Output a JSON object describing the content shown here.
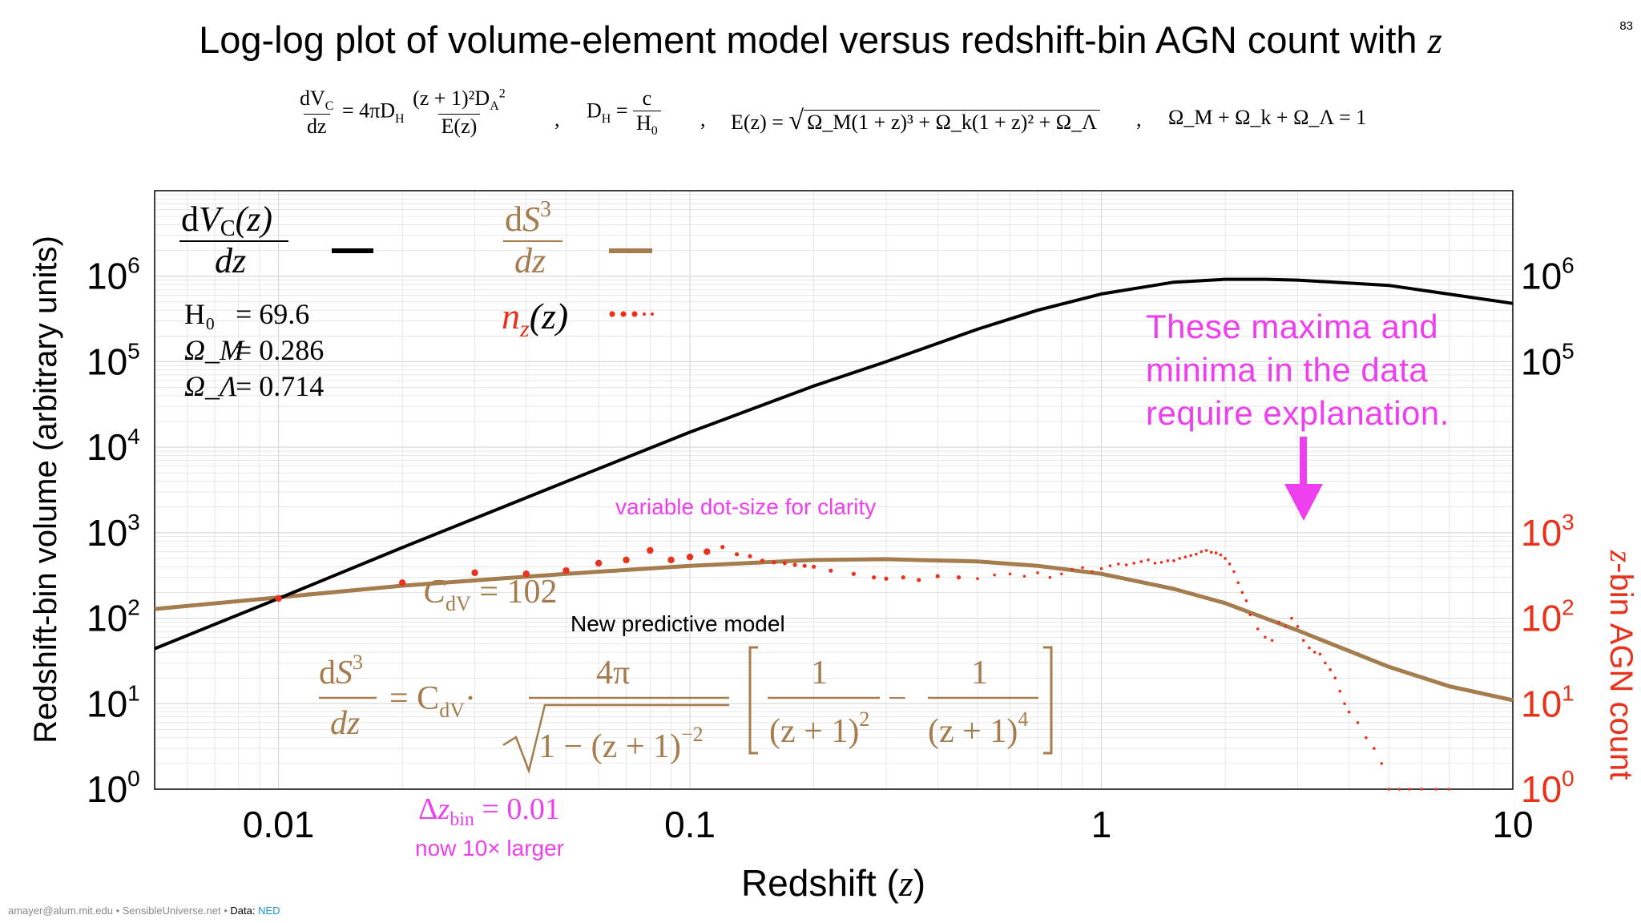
{
  "slide": {
    "title_main": "Log-log plot of volume-element model versus redshift-bin AGN count with ",
    "title_var": "z",
    "page_number": "83"
  },
  "equations": {
    "dvc_lhs_num": "dV",
    "dvc_lhs_num_sub": "C",
    "dvc_lhs_den": "dz",
    "dvc_rhs_prefix": "= 4πD",
    "dvc_rhs_prefix_sub": "H",
    "dvc_rhs_num": "(z + 1)²D",
    "dvc_rhs_num_sub": "A",
    "dvc_rhs_num_sup": "2",
    "dvc_rhs_den": "E(z)",
    "dh_lhs": "D",
    "dh_lhs_sub": "H",
    "dh_eq": " = ",
    "dh_num": "c",
    "dh_den": "H",
    "dh_den_sub": "0",
    "ez_lhs": "E(z) = ",
    "ez_radicand": "Ω_M(1 + z)³ + Ω_k(1 + z)² + Ω_Λ",
    "omega_sum": "Ω_M + Ω_k + Ω_Λ = 1",
    "separator": ","
  },
  "legend": {
    "dvc_num": "dV",
    "dvc_num_sub": "C",
    "dvc_num_arg": "(z)",
    "dvc_den": "dz",
    "ds3_num": "dS",
    "ds3_num_sup": "3",
    "ds3_den": "dz",
    "nz_label": "n",
    "nz_sub": "z",
    "nz_arg": "(z)"
  },
  "params": [
    {
      "name": "H₀",
      "value": "= 69.6"
    },
    {
      "name": "Ω_M",
      "value": "= 0.286"
    },
    {
      "name": "Ω_Λ",
      "value": "= 0.714"
    }
  ],
  "annotations": {
    "maxima_line1": "These maxima and",
    "maxima_line2": "minima in the data",
    "maxima_line3": "require explanation.",
    "dot_size": "variable dot-size for clarity",
    "cdv_value": "C",
    "cdv_sub": "dV",
    "cdv_eq": " = 102",
    "new_model": "New predictive model",
    "model_lhs_num": "dS",
    "model_lhs_num_sup": "3",
    "model_lhs_den": "dz",
    "model_rhs_coef": "= C",
    "model_rhs_coef_sub": "dV",
    "model_rhs_dot": "·",
    "model_frac_num": "4π",
    "model_frac_den": "1 − (z + 1)",
    "model_frac_den_sup": "−2",
    "model_b1_num": "1",
    "model_b1_den": "(z + 1)",
    "model_b1_den_sup": "2",
    "model_minus": "−",
    "model_b2_num": "1",
    "model_b2_den": "(z + 1)",
    "model_b2_den_sup": "4",
    "dz_bin": "Δz",
    "dz_bin_sub": "bin",
    "dz_bin_eq": " = 0.01",
    "dz_bin_note": "now 10× larger"
  },
  "footer": {
    "left": "amayer@alum.mit.edu • SensibleUniverse.net • ",
    "data_label": "Data: ",
    "data_source": "NED"
  },
  "colors": {
    "black_curve": "#000000",
    "brown_curve": "#a57c4d",
    "red_dots": "#e8321c",
    "magenta": "#ee3fee",
    "grid": "#d9d9d9"
  },
  "chart_data": {
    "type": "line",
    "xscale": "log",
    "yscale": "log",
    "xlim": [
      0.005,
      10
    ],
    "ylim_left": [
      1,
      10000000
    ],
    "ylim_right": [
      1,
      10000000
    ],
    "xlabel": "Redshift (z)",
    "xlabel_main": "Redshift (",
    "xlabel_var": "z",
    "xlabel_end": ")",
    "ylabel_left": "Redshift-bin volume (arbitrary units)",
    "ylabel_right_var": "z",
    "ylabel_right_rest": "-bin AGN count",
    "grid": true,
    "x_ticks": [
      {
        "value": 0.01,
        "label": "0.01"
      },
      {
        "value": 0.1,
        "label": "0.1"
      },
      {
        "value": 1,
        "label": "1"
      },
      {
        "value": 10,
        "label": "10"
      }
    ],
    "y_ticks_left": [
      {
        "value": 1,
        "base": "10",
        "exp": "0"
      },
      {
        "value": 10,
        "base": "10",
        "exp": "1"
      },
      {
        "value": 100,
        "base": "10",
        "exp": "2"
      },
      {
        "value": 1000,
        "base": "10",
        "exp": "3"
      },
      {
        "value": 10000,
        "base": "10",
        "exp": "4"
      },
      {
        "value": 100000,
        "base": "10",
        "exp": "5"
      },
      {
        "value": 1000000,
        "base": "10",
        "exp": "6"
      }
    ],
    "y_ticks_right": [
      {
        "value": 1,
        "base": "10",
        "exp": "0"
      },
      {
        "value": 10,
        "base": "10",
        "exp": "1"
      },
      {
        "value": 100,
        "base": "10",
        "exp": "2"
      },
      {
        "value": 1000,
        "base": "10",
        "exp": "3"
      },
      {
        "value": 100000,
        "base": "10",
        "exp": "5"
      },
      {
        "value": 1000000,
        "base": "10",
        "exp": "6"
      }
    ],
    "series": [
      {
        "name": "dV_C(z)/dz",
        "style": "solid-black",
        "x": [
          0.005,
          0.01,
          0.02,
          0.05,
          0.1,
          0.2,
          0.3,
          0.5,
          0.7,
          1.0,
          1.5,
          2.0,
          2.5,
          3.0,
          5.0,
          10.0
        ],
        "y": [
          44,
          170,
          670,
          3950,
          15000,
          52000,
          100000,
          240000,
          400000,
          620000,
          850000,
          920000,
          920000,
          900000,
          780000,
          480000
        ]
      },
      {
        "name": "dS³/dz",
        "style": "solid-brown",
        "x": [
          0.005,
          0.01,
          0.02,
          0.05,
          0.1,
          0.2,
          0.3,
          0.5,
          0.7,
          1.0,
          1.5,
          2.0,
          3.0,
          5.0,
          7.0,
          10.0
        ],
        "y": [
          128,
          175,
          240,
          330,
          410,
          480,
          490,
          460,
          410,
          330,
          220,
          150,
          72,
          27,
          16,
          11
        ]
      },
      {
        "name": "n_z(z)",
        "style": "dots-red",
        "x": [
          0.01,
          0.02,
          0.03,
          0.04,
          0.05,
          0.06,
          0.07,
          0.08,
          0.09,
          0.1,
          0.11,
          0.12,
          0.13,
          0.14,
          0.15,
          0.16,
          0.17,
          0.18,
          0.19,
          0.2,
          0.22,
          0.25,
          0.28,
          0.3,
          0.33,
          0.36,
          0.4,
          0.45,
          0.5,
          0.55,
          0.6,
          0.65,
          0.7,
          0.75,
          0.8,
          0.85,
          0.9,
          0.95,
          1.0,
          1.05,
          1.1,
          1.15,
          1.2,
          1.25,
          1.3,
          1.35,
          1.4,
          1.45,
          1.5,
          1.55,
          1.6,
          1.65,
          1.7,
          1.75,
          1.8,
          1.85,
          1.9,
          1.95,
          2.0,
          2.05,
          2.1,
          2.15,
          2.2,
          2.25,
          2.3,
          2.4,
          2.5,
          2.6,
          2.7,
          2.8,
          2.9,
          3.0,
          3.1,
          3.2,
          3.3,
          3.4,
          3.5,
          3.6,
          3.7,
          3.8,
          3.9,
          4.0,
          4.2,
          4.4,
          4.6,
          4.8,
          5.0,
          5.3,
          5.6,
          6.0,
          6.5,
          7.0
        ],
        "y": [
          170,
          260,
          340,
          330,
          360,
          440,
          480,
          620,
          480,
          520,
          600,
          680,
          560,
          530,
          470,
          450,
          440,
          420,
          410,
          400,
          360,
          330,
          300,
          290,
          300,
          280,
          310,
          300,
          290,
          320,
          330,
          310,
          340,
          300,
          330,
          370,
          390,
          350,
          380,
          410,
          430,
          420,
          440,
          460,
          480,
          440,
          450,
          470,
          470,
          500,
          520,
          540,
          560,
          600,
          620,
          590,
          580,
          550,
          500,
          430,
          350,
          260,
          200,
          160,
          110,
          75,
          60,
          55,
          90,
          80,
          100,
          80,
          55,
          45,
          40,
          38,
          30,
          25,
          20,
          14,
          10,
          8,
          6,
          4,
          3,
          2,
          1,
          1,
          1,
          1,
          1,
          1
        ]
      }
    ]
  }
}
